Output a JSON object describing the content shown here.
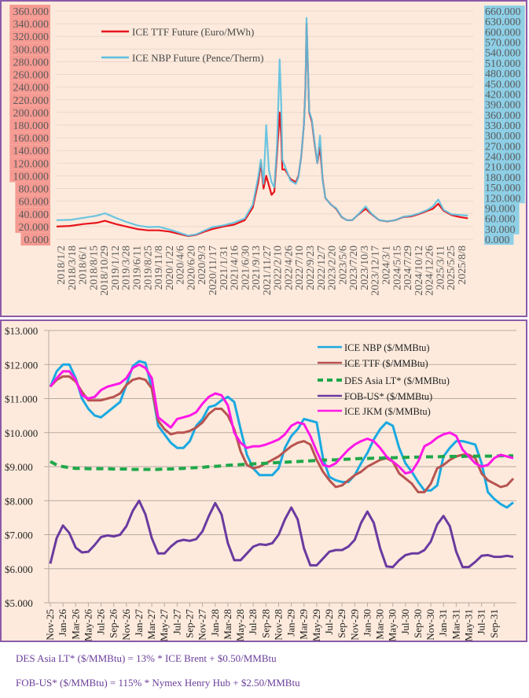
{
  "chart_data": [
    {
      "type": "line",
      "title": "",
      "xlabel": "",
      "ylabel_left": "",
      "ylabel_right": "",
      "ylim_left": [
        0,
        360
      ],
      "ylim_right": [
        0,
        660
      ],
      "y_ticks_left": [
        "0.000",
        "20.000",
        "40.000",
        "60.000",
        "80.000",
        "100.000",
        "120.000",
        "140.000",
        "160.000",
        "180.000",
        "200.000",
        "220.000",
        "240.000",
        "260.000",
        "280.000",
        "300.000",
        "320.000",
        "340.000",
        "360.000"
      ],
      "y_ticks_right": [
        "0.000",
        "30.000",
        "60.000",
        "90.000",
        "120.000",
        "150.000",
        "180.000",
        "210.000",
        "240.000",
        "270.000",
        "300.000",
        "330.000",
        "360.000",
        "390.000",
        "420.000",
        "450.000",
        "480.000",
        "510.000",
        "540.000",
        "570.000",
        "600.000",
        "630.000",
        "660.000"
      ],
      "x_tick_labels": [
        "2018/1/2",
        "2018/3/18",
        "2018/6/1",
        "2018/8/15",
        "2018/10/29",
        "2019/1/12",
        "2019/3/28",
        "2019/6/11",
        "2019/8/25",
        "2019/11/8",
        "2020/1/22",
        "2020/4/6",
        "2020/6/20",
        "2020/9/3",
        "2020/11/17",
        "2021/1/31",
        "2021/4/16",
        "2021/6/30",
        "2021/9/13",
        "2021/11/27",
        "2022/2/10",
        "2022/4/26",
        "2022/7/10",
        "2022/9/23",
        "2022/12/7",
        "2023/2/20",
        "2023/5/6",
        "2023/7/20",
        "2023/10/3",
        "2023/12/17",
        "2024/3/1",
        "2024/5/15",
        "2024/7/29",
        "2024/10/12",
        "2024/12/26",
        "2025/3/11",
        "2025/5/25",
        "2025/8/8"
      ],
      "grid": true,
      "legend_position": "top-left",
      "series": [
        {
          "name": "ICE TTF Future (Euro/MWh)",
          "axis": "left",
          "color": "#e8141c",
          "x": [
            2018.0,
            2018.25,
            2018.5,
            2018.75,
            2018.9,
            2019.1,
            2019.3,
            2019.5,
            2019.7,
            2019.9,
            2020.1,
            2020.3,
            2020.45,
            2020.6,
            2020.75,
            2020.9,
            2021.1,
            2021.3,
            2021.5,
            2021.65,
            2021.75,
            2021.8,
            2021.85,
            2021.9,
            2021.95,
            2022.0,
            2022.05,
            2022.1,
            2022.15,
            2022.18,
            2022.2,
            2022.25,
            2022.35,
            2022.45,
            2022.5,
            2022.55,
            2022.6,
            2022.63,
            2022.65,
            2022.7,
            2022.75,
            2022.8,
            2022.85,
            2022.9,
            2022.95,
            2023.0,
            2023.1,
            2023.2,
            2023.3,
            2023.4,
            2023.5,
            2023.6,
            2023.75,
            2023.85,
            2024.0,
            2024.15,
            2024.3,
            2024.45,
            2024.6,
            2024.75,
            2024.9,
            2025.0,
            2025.1,
            2025.2,
            2025.35,
            2025.5,
            2025.65
          ],
          "values": [
            20,
            21,
            24,
            26,
            29,
            24,
            20,
            16,
            14,
            14,
            12,
            8,
            5,
            7,
            12,
            16,
            20,
            23,
            30,
            50,
            90,
            120,
            80,
            100,
            85,
            70,
            75,
            135,
            200,
            160,
            110,
            110,
            95,
            90,
            100,
            130,
            180,
            240,
            340,
            200,
            185,
            150,
            120,
            145,
            95,
            65,
            55,
            48,
            35,
            30,
            30,
            38,
            48,
            40,
            30,
            28,
            30,
            35,
            36,
            40,
            45,
            48,
            56,
            45,
            38,
            35,
            33
          ]
        },
        {
          "name": "ICE NBP Future (Pence/Therm)",
          "axis": "right",
          "color": "#5bc0e0",
          "x": [
            2018.0,
            2018.25,
            2018.5,
            2018.75,
            2018.9,
            2019.1,
            2019.3,
            2019.5,
            2019.7,
            2019.9,
            2020.1,
            2020.3,
            2020.45,
            2020.6,
            2020.75,
            2020.9,
            2021.1,
            2021.3,
            2021.5,
            2021.65,
            2021.75,
            2021.8,
            2021.85,
            2021.9,
            2021.95,
            2022.0,
            2022.05,
            2022.1,
            2022.15,
            2022.18,
            2022.2,
            2022.25,
            2022.35,
            2022.45,
            2022.5,
            2022.55,
            2022.6,
            2022.63,
            2022.65,
            2022.7,
            2022.75,
            2022.8,
            2022.85,
            2022.9,
            2022.95,
            2023.0,
            2023.1,
            2023.2,
            2023.3,
            2023.4,
            2023.5,
            2023.6,
            2023.75,
            2023.85,
            2024.0,
            2024.15,
            2024.3,
            2024.45,
            2024.6,
            2024.75,
            2024.9,
            2025.0,
            2025.1,
            2025.2,
            2025.35,
            2025.5,
            2025.65
          ],
          "values": [
            55,
            56,
            62,
            68,
            75,
            62,
            50,
            40,
            35,
            36,
            28,
            18,
            10,
            14,
            25,
            35,
            40,
            48,
            60,
            100,
            180,
            230,
            160,
            330,
            200,
            165,
            150,
            270,
            520,
            380,
            230,
            210,
            170,
            160,
            180,
            240,
            330,
            430,
            640,
            370,
            345,
            280,
            220,
            300,
            170,
            120,
            100,
            90,
            65,
            55,
            55,
            70,
            95,
            75,
            55,
            52,
            55,
            65,
            68,
            75,
            85,
            95,
            115,
            85,
            72,
            70,
            68
          ]
        }
      ]
    },
    {
      "type": "line",
      "title": "",
      "xlabel": "",
      "ylabel": "",
      "ylim": [
        5,
        13
      ],
      "y_ticks": [
        "$5.000",
        "$6.000",
        "$7.000",
        "$8.000",
        "$9.000",
        "$10.000",
        "$11.000",
        "$12.000",
        "$13.000"
      ],
      "grid": true,
      "legend_position": "top-right",
      "x_tick_labels": [
        "Nov-25",
        "Jan-26",
        "Mar-26",
        "May-26",
        "Jul-26",
        "Sep-26",
        "Nov-26",
        "Jan-27",
        "Mar-27",
        "May-27",
        "Jul-27",
        "Sep-27",
        "Nov-27",
        "Jan-28",
        "Mar-28",
        "May-28",
        "Jul-28",
        "Sep-28",
        "Nov-28",
        "Jan-29",
        "Mar-29",
        "May-29",
        "Jul-29",
        "Sep-29",
        "Nov-29",
        "Jan-30",
        "Mar-30",
        "May-30",
        "Jul-30",
        "Sep-30",
        "Nov-30",
        "Jan-31",
        "Mar-31",
        "May-31",
        "Jul-31",
        "Sep-31"
      ],
      "series": [
        {
          "name": "ICE NBP ($/MMBtu)",
          "color": "#1aa9e1",
          "dash": false,
          "values": [
            11.35,
            11.8,
            12.0,
            12.0,
            11.6,
            11.0,
            10.7,
            10.5,
            10.45,
            10.6,
            10.75,
            10.9,
            11.4,
            11.95,
            12.1,
            12.05,
            11.3,
            10.2,
            9.95,
            9.7,
            9.55,
            9.55,
            9.75,
            10.2,
            10.4,
            10.75,
            10.8,
            10.95,
            11.05,
            10.9,
            10.1,
            9.35,
            8.95,
            8.75,
            8.75,
            8.75,
            8.95,
            9.55,
            9.9,
            10.1,
            10.4,
            10.35,
            10.3,
            9.25,
            8.7,
            8.6,
            8.55,
            8.55,
            8.75,
            9.1,
            9.4,
            9.8,
            10.1,
            10.3,
            10.2,
            9.55,
            9.1,
            8.85,
            8.55,
            8.3,
            8.3,
            8.45,
            9.3,
            9.55,
            9.75,
            9.75,
            9.7,
            9.65,
            9.1,
            8.25,
            8.05,
            7.9,
            7.8,
            7.95
          ]
        },
        {
          "name": "ICE TTF ($/MMBtu)",
          "color": "#b85450",
          "dash": false,
          "values": [
            11.35,
            11.55,
            11.65,
            11.65,
            11.5,
            11.2,
            10.95,
            10.95,
            10.95,
            11.0,
            11.05,
            11.15,
            11.4,
            11.55,
            11.6,
            11.55,
            11.3,
            10.35,
            10.1,
            9.95,
            10.0,
            10.0,
            10.05,
            10.15,
            10.3,
            10.55,
            10.7,
            10.7,
            10.5,
            10.1,
            9.45,
            9.05,
            8.95,
            9.0,
            9.1,
            9.2,
            9.3,
            9.45,
            9.6,
            9.7,
            9.75,
            9.65,
            9.2,
            8.85,
            8.6,
            8.4,
            8.45,
            8.6,
            8.75,
            8.85,
            9.0,
            9.1,
            9.2,
            9.25,
            9.15,
            8.8,
            8.65,
            8.5,
            8.25,
            8.25,
            8.5,
            8.95,
            9.05,
            9.2,
            9.3,
            9.35,
            9.35,
            9.25,
            8.8,
            8.6,
            8.5,
            8.4,
            8.45,
            8.65
          ]
        },
        {
          "name": "DES Asia LT* ($/MMBtu)",
          "color": "#1fa84a",
          "dash": true,
          "values": [
            9.15,
            9.05,
            9.0,
            8.97,
            8.95,
            8.95,
            8.94,
            8.94,
            8.94,
            8.94,
            8.93,
            8.93,
            8.93,
            8.92,
            8.92,
            8.92,
            8.92,
            8.92,
            8.93,
            8.93,
            8.94,
            8.95,
            8.96,
            8.97,
            8.98,
            9.0,
            9.01,
            9.02,
            9.04,
            9.05,
            9.06,
            9.07,
            9.08,
            9.09,
            9.1,
            9.11,
            9.12,
            9.13,
            9.14,
            9.15,
            9.16,
            9.17,
            9.18,
            9.19,
            9.2,
            9.2,
            9.21,
            9.22,
            9.23,
            9.24,
            9.24,
            9.25,
            9.25,
            9.26,
            9.26,
            9.27,
            9.27,
            9.28,
            9.28,
            9.29,
            9.29,
            9.29,
            9.3,
            9.3,
            9.3,
            9.3,
            9.31,
            9.31,
            9.31,
            9.31,
            9.31,
            9.32,
            9.32,
            9.32
          ]
        },
        {
          "name": "FOB-US* ($/MMBtu)",
          "color": "#6a3aa0",
          "dash": false,
          "values": [
            6.15,
            6.9,
            7.27,
            7.05,
            6.62,
            6.48,
            6.5,
            6.7,
            6.93,
            6.98,
            6.95,
            7.0,
            7.25,
            7.7,
            8.0,
            7.6,
            6.9,
            6.45,
            6.45,
            6.65,
            6.8,
            6.85,
            6.82,
            6.87,
            7.1,
            7.55,
            7.93,
            7.6,
            6.75,
            6.25,
            6.25,
            6.45,
            6.65,
            6.72,
            6.7,
            6.75,
            7.0,
            7.45,
            7.8,
            7.45,
            6.6,
            6.1,
            6.1,
            6.3,
            6.5,
            6.55,
            6.55,
            6.65,
            6.85,
            7.35,
            7.68,
            7.35,
            6.6,
            6.07,
            6.05,
            6.25,
            6.4,
            6.45,
            6.45,
            6.55,
            6.8,
            7.3,
            7.55,
            7.25,
            6.5,
            6.05,
            6.05,
            6.2,
            6.38,
            6.4,
            6.35,
            6.35,
            6.38,
            6.35
          ]
        },
        {
          "name": "ICE JKM ($/MMBtu)",
          "color": "#ff17e8",
          "dash": false,
          "values": [
            11.35,
            11.6,
            11.8,
            11.8,
            11.55,
            11.1,
            11.0,
            11.05,
            11.25,
            11.35,
            11.4,
            11.45,
            11.6,
            11.9,
            12.0,
            11.9,
            11.6,
            10.45,
            10.3,
            10.15,
            10.4,
            10.45,
            10.5,
            10.6,
            10.85,
            11.05,
            11.15,
            11.1,
            10.8,
            10.0,
            9.7,
            9.55,
            9.6,
            9.6,
            9.65,
            9.72,
            9.8,
            9.95,
            10.2,
            10.3,
            10.25,
            9.9,
            9.45,
            9.05,
            9.0,
            9.1,
            9.3,
            9.5,
            9.65,
            9.75,
            9.82,
            9.75,
            9.55,
            9.3,
            9.15,
            9.0,
            8.8,
            8.85,
            9.15,
            9.6,
            9.7,
            9.85,
            9.95,
            10.0,
            9.9,
            9.5,
            9.3,
            9.1,
            9.0,
            9.05,
            9.25,
            9.35,
            9.3,
            9.25
          ]
        }
      ]
    }
  ],
  "notes": {
    "des_asia": "DES Asia LT* ($/MMBtu) = 13% * ICE Brent + $0.50/MMBtu",
    "fob_us": "FOB-US* ($/MMBtu) = 115% * Nymex Henry Hub + $2.50/MMBtu"
  }
}
